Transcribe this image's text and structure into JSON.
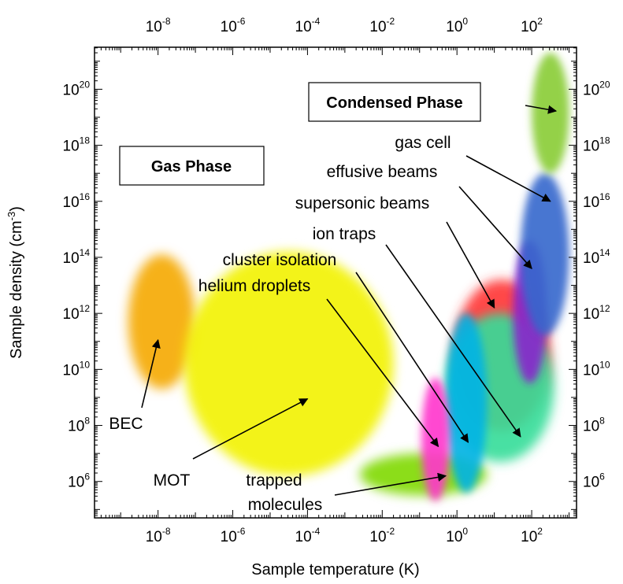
{
  "chart_data": {
    "type": "scatter",
    "title": "",
    "xlabel": "Sample temperature (K)",
    "ylabel_main": "Sample density (cm",
    "ylabel_exp": "-3",
    "ylabel_tail": ")",
    "xscale": "log",
    "yscale": "log",
    "xlim_log10": [
      -9.7,
      3.2
    ],
    "ylim_log10": [
      4.7,
      21.5
    ],
    "x_ticks": [
      {
        "base": "10",
        "exp": "-8",
        "log": -8
      },
      {
        "base": "10",
        "exp": "-6",
        "log": -6
      },
      {
        "base": "10",
        "exp": "-4",
        "log": -4
      },
      {
        "base": "10",
        "exp": "-2",
        "log": -2
      },
      {
        "base": "10",
        "exp": "0",
        "log": 0
      },
      {
        "base": "10",
        "exp": "2",
        "log": 2
      }
    ],
    "y_ticks": [
      {
        "base": "10",
        "exp": "6",
        "log": 6
      },
      {
        "base": "10",
        "exp": "8",
        "log": 8
      },
      {
        "base": "10",
        "exp": "10",
        "log": 10
      },
      {
        "base": "10",
        "exp": "12",
        "log": 12
      },
      {
        "base": "10",
        "exp": "14",
        "log": 14
      },
      {
        "base": "10",
        "exp": "16",
        "log": 16
      },
      {
        "base": "10",
        "exp": "18",
        "log": 18
      },
      {
        "base": "10",
        "exp": "20",
        "log": 20
      }
    ],
    "grid": false,
    "regions": [
      {
        "label": "BEC",
        "color": "#f5a800",
        "log_T_range": [
          -8.8,
          -7.0
        ],
        "log_n_range": [
          9.3,
          14.1
        ]
      },
      {
        "label": "MOT",
        "color": "#f2f200",
        "log_T_range": [
          -7.3,
          -1.7
        ],
        "log_n_range": [
          6.2,
          14.2
        ]
      },
      {
        "label": "trapped molecules",
        "color": "#7fd900",
        "log_T_range": [
          -2.6,
          0.8
        ],
        "log_n_range": [
          5.5,
          7.0
        ]
      },
      {
        "label": "helium droplets",
        "color": "#ff33cc",
        "log_T_range": [
          -0.95,
          -0.2
        ],
        "log_n_range": [
          5.3,
          9.7
        ]
      },
      {
        "label": "cluster isolation",
        "color": "#00b3e6",
        "log_T_range": [
          -0.3,
          0.8
        ],
        "log_n_range": [
          5.6,
          12.0
        ]
      },
      {
        "label": "ion traps",
        "color": "#33dd99",
        "log_T_range": [
          -0.3,
          2.6
        ],
        "log_n_range": [
          6.7,
          12.0
        ]
      },
      {
        "label": "supersonic beams",
        "color": "#ff3333",
        "log_T_range": [
          -0.1,
          2.5
        ],
        "log_n_range": [
          7.8,
          13.2
        ]
      },
      {
        "label": "effusive beams",
        "color": "#8822cc",
        "log_T_range": [
          1.5,
          2.4
        ],
        "log_n_range": [
          9.5,
          14.6
        ]
      },
      {
        "label": "gas cell",
        "color": "#3366cc",
        "log_T_range": [
          1.7,
          3.0
        ],
        "log_n_range": [
          11.2,
          17.0
        ]
      },
      {
        "label": "Condensed Phase",
        "color": "#88cc33",
        "log_T_range": [
          2.0,
          3.0
        ],
        "log_n_range": [
          17.0,
          21.3
        ]
      }
    ],
    "annotations": [
      {
        "text": "BEC",
        "arrow_to_log": [
          -8.0,
          11.05
        ]
      },
      {
        "text": "MOT",
        "arrow_to_log": [
          -4.0,
          8.95
        ]
      },
      {
        "text": "trapped",
        "text2": "molecules",
        "arrow_to_log": [
          -0.3,
          6.2
        ]
      },
      {
        "text": "helium droplets",
        "arrow_to_log": [
          -0.5,
          7.25
        ]
      },
      {
        "text": "cluster isolation",
        "arrow_to_log": [
          0.3,
          7.4
        ]
      },
      {
        "text": "ion traps",
        "arrow_to_log": [
          1.7,
          7.6
        ]
      },
      {
        "text": "supersonic beams",
        "arrow_to_log": [
          1.0,
          12.2
        ]
      },
      {
        "text": "effusive beams",
        "arrow_to_log": [
          2.0,
          13.6
        ]
      },
      {
        "text": "gas cell",
        "arrow_to_log": [
          2.5,
          16.0
        ]
      }
    ],
    "phase_labels": [
      "Gas Phase",
      "Condensed Phase"
    ]
  }
}
